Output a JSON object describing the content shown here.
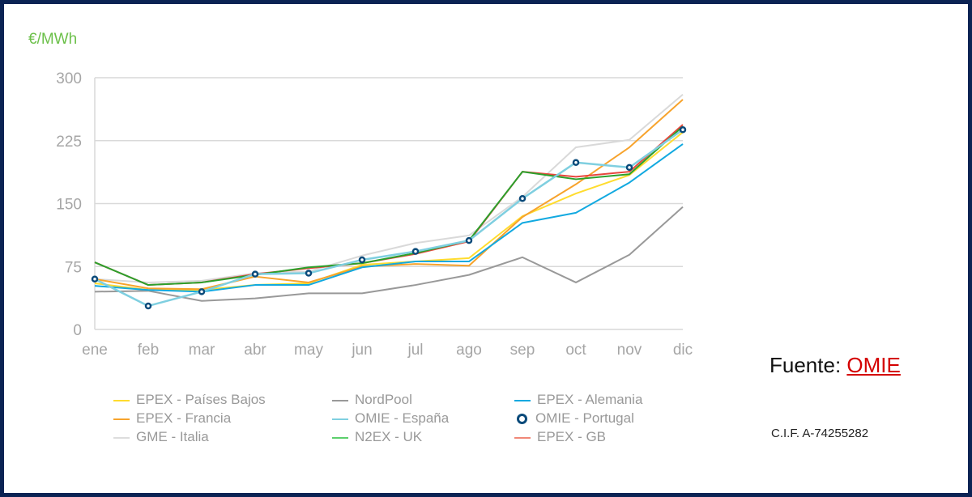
{
  "chart_data": {
    "type": "line",
    "title": "",
    "ylabel": "€/MWh",
    "xlabel": "",
    "categories": [
      "ene",
      "feb",
      "mar",
      "abr",
      "may",
      "jun",
      "jul",
      "ago",
      "sep",
      "oct",
      "nov",
      "dic"
    ],
    "ylim": [
      0,
      300
    ],
    "yticks": [
      0,
      75,
      150,
      225,
      300
    ],
    "grid": true,
    "legend_position": "bottom",
    "series": [
      {
        "name": "GME - Italia",
        "color": "#d9d9d9",
        "values": [
          60,
          56,
          58,
          67,
          69,
          88,
          103,
          112,
          158,
          217,
          226,
          280
        ]
      },
      {
        "name": "NordPool",
        "color": "#999999",
        "values": [
          45,
          46,
          34,
          37,
          43,
          43,
          53,
          65,
          86,
          56,
          89,
          146
        ]
      },
      {
        "name": "EPEX - Países Bajos",
        "color": "#ffdc2e",
        "values": [
          55,
          47,
          47,
          53,
          55,
          77,
          81,
          85,
          135,
          162,
          184,
          235
        ]
      },
      {
        "name": "EPEX - Francia",
        "color": "#f7a32c",
        "values": [
          60,
          49,
          48,
          63,
          56,
          75,
          78,
          76,
          134,
          173,
          217,
          274
        ]
      },
      {
        "name": "EPEX - Alemania",
        "color": "#12a9e0",
        "values": [
          52,
          47,
          45,
          53,
          53,
          74,
          81,
          81,
          127,
          139,
          175,
          221
        ]
      },
      {
        "name": "EPEX - GB",
        "color": "#e8473e",
        "values": [
          80,
          53,
          56,
          66,
          73,
          79,
          90,
          105,
          188,
          182,
          188,
          244
        ]
      },
      {
        "name": "N2EX - UK",
        "color": "#2ca02c",
        "values": [
          80,
          53,
          56,
          65,
          74,
          79,
          91,
          106,
          188,
          179,
          185,
          242
        ]
      },
      {
        "name": "OMIE - España",
        "color": "#7fcfe0",
        "values": [
          60,
          28,
          45,
          66,
          67,
          83,
          93,
          106,
          156,
          199,
          193,
          238
        ]
      },
      {
        "name": "OMIE - Portugal",
        "color": "#0a4a7a",
        "marker": "circle",
        "values": [
          60,
          28,
          45,
          66,
          67,
          83,
          93,
          106,
          156,
          199,
          193,
          238
        ]
      }
    ]
  },
  "legend": [
    {
      "label": "EPEX - Países Bajos",
      "color": "#ffdc2e",
      "type": "line"
    },
    {
      "label": "NordPool",
      "color": "#999999",
      "type": "line"
    },
    {
      "label": "EPEX - Alemania",
      "color": "#12a9e0",
      "type": "line"
    },
    {
      "label": "EPEX - Francia",
      "color": "#f7a32c",
      "type": "line"
    },
    {
      "label": "OMIE - España",
      "color": "#7fcfe0",
      "type": "line"
    },
    {
      "label": "OMIE - Portugal",
      "color": "#0a4a7a",
      "type": "marker"
    },
    {
      "label": "GME - Italia",
      "color": "#dddddd",
      "type": "line"
    },
    {
      "label": "N2EX - UK",
      "color": "#5ccf6c",
      "type": "line"
    },
    {
      "label": "EPEX - GB",
      "color": "#f08878",
      "type": "line"
    }
  ],
  "source": {
    "label": "Fuente:",
    "link": "OMIE"
  },
  "cif": "C.I.F. A-74255282"
}
